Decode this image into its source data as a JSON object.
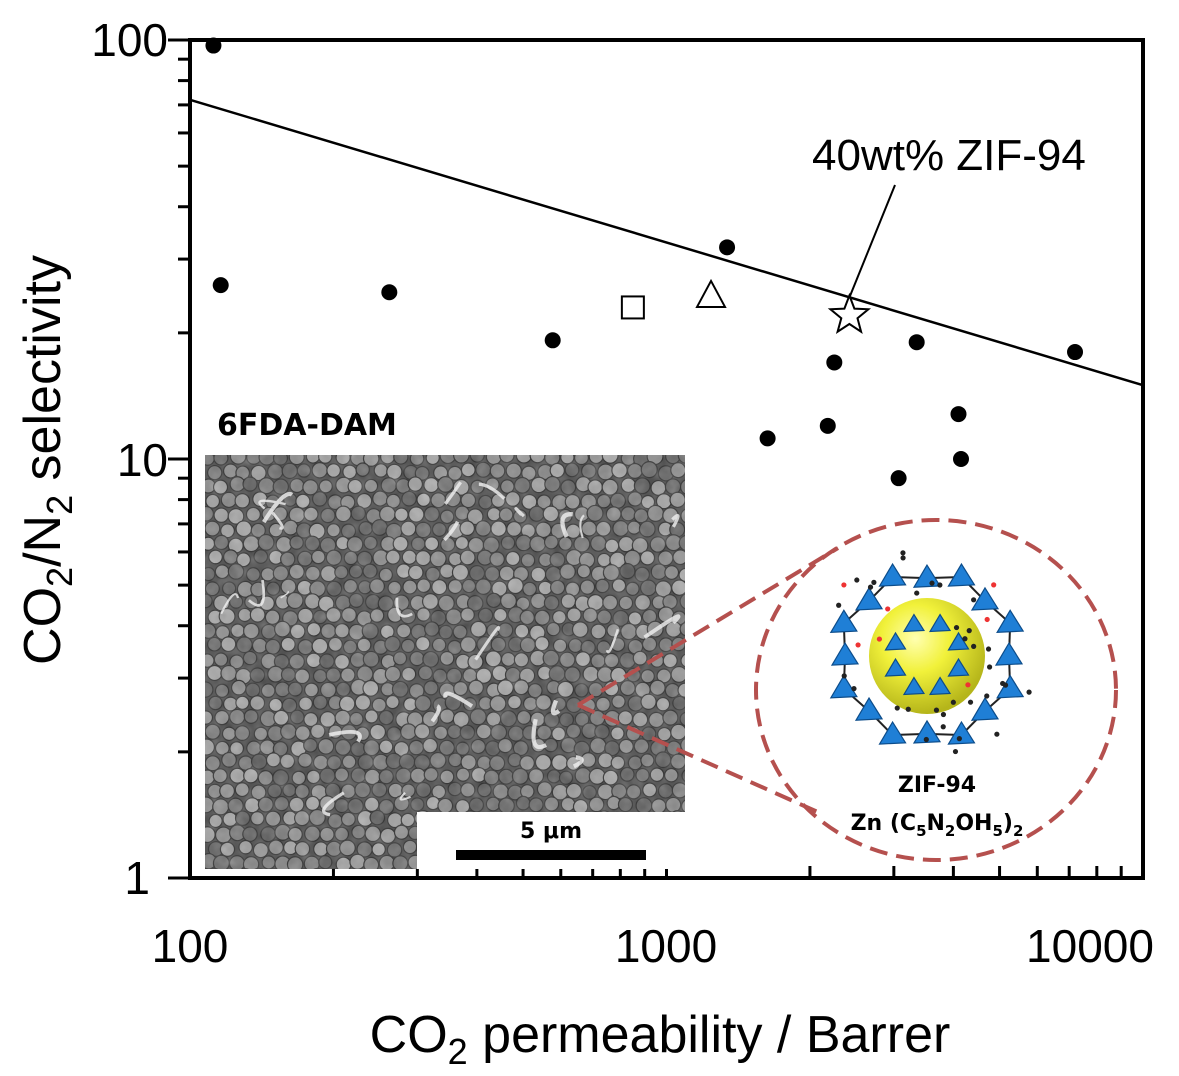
{
  "chart_data": {
    "type": "scatter",
    "xscale": "log",
    "yscale": "log",
    "xlim": [
      100,
      10000
    ],
    "ylim": [
      1,
      100
    ],
    "x_ticks": [
      "100",
      "1000",
      "10000"
    ],
    "y_ticks": [
      "1",
      "10",
      "100"
    ],
    "xlabel": {
      "main": "CO",
      "sub": "2",
      "rest": " permeability / Barrer"
    },
    "ylabel": {
      "p1": "CO",
      "s1": "2",
      "p2": "/N",
      "s2": "2",
      "p3": " selectivity"
    },
    "grid": false,
    "upper_bound_line": {
      "x": [
        100,
        10000
      ],
      "y": [
        72,
        15
      ]
    },
    "series": [
      {
        "marker": "filled-circle",
        "points": [
          [
            112,
            97
          ],
          [
            116,
            26
          ],
          [
            262,
            25
          ],
          [
            577,
            19.2
          ],
          [
            1340,
            32
          ],
          [
            1630,
            11.2
          ],
          [
            2250,
            17
          ],
          [
            2180,
            12
          ],
          [
            3350,
            19
          ],
          [
            3070,
            9
          ],
          [
            4100,
            12.8
          ],
          [
            4150,
            10
          ],
          [
            7200,
            18
          ]
        ]
      },
      {
        "marker": "open-square",
        "points": [
          [
            850,
            23
          ]
        ]
      },
      {
        "marker": "open-triangle",
        "points": [
          [
            1240,
            24.5
          ]
        ]
      },
      {
        "marker": "open-star",
        "points": [
          [
            2420,
            22
          ]
        ]
      }
    ],
    "annotations": {
      "star_label": "40wt% ZIF-94",
      "polymer_label": "6FDA-DAM",
      "scale_bar_label": "5 μm",
      "zif_name": "ZIF-94",
      "zif_formula": {
        "a": "Zn (C",
        "b": "5",
        "c": "N",
        "d": "2",
        "e": "OH",
        "f": "5",
        "g": ")",
        "h": "2"
      }
    },
    "colors": {
      "zoom_circle": "#b5504e",
      "zif_sphere": "#e8e823",
      "zif_tetrahedra": "#1f7fd6"
    }
  }
}
